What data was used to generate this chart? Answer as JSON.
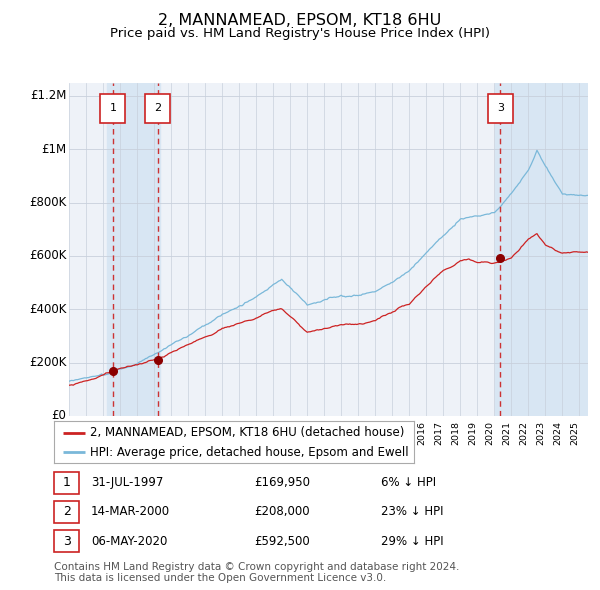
{
  "title": "2, MANNAMEAD, EPSOM, KT18 6HU",
  "subtitle": "Price paid vs. HM Land Registry's House Price Index (HPI)",
  "ylim": [
    0,
    1250000
  ],
  "yticks": [
    0,
    200000,
    400000,
    600000,
    800000,
    1000000,
    1200000
  ],
  "ytick_labels": [
    "£0",
    "£200K",
    "£400K",
    "£600K",
    "£800K",
    "£1M",
    "£1.2M"
  ],
  "hpi_color": "#7ab8d9",
  "price_color": "#cc2222",
  "dot_color": "#8b0000",
  "bg_color": "#ffffff",
  "plot_bg_color": "#eef2f8",
  "grid_color": "#c8d0dc",
  "dashed_line_color": "#cc3333",
  "shade_color": "#d8e6f3",
  "hatch_color": "#c0d4e8",
  "transactions": [
    {
      "date_label": "31-JUL-1997",
      "date_x": 1997.58,
      "price": 169950,
      "label": "6% ↓ HPI",
      "num": 1
    },
    {
      "date_label": "14-MAR-2000",
      "date_x": 2000.21,
      "price": 208000,
      "label": "23% ↓ HPI",
      "num": 2
    },
    {
      "date_label": "06-MAY-2020",
      "date_x": 2020.35,
      "price": 592500,
      "label": "29% ↓ HPI",
      "num": 3
    }
  ],
  "legend_entries": [
    "2, MANNAMEAD, EPSOM, KT18 6HU (detached house)",
    "HPI: Average price, detached house, Epsom and Ewell"
  ],
  "footnote": "Contains HM Land Registry data © Crown copyright and database right 2024.\nThis data is licensed under the Open Government Licence v3.0.",
  "xmin": 1995.0,
  "xmax": 2025.5,
  "title_fontsize": 11.5,
  "subtitle_fontsize": 9.5,
  "tick_fontsize": 8.5,
  "legend_fontsize": 8.5,
  "table_fontsize": 8.5,
  "footnote_fontsize": 7.5,
  "anno_fontsize": 8.5
}
